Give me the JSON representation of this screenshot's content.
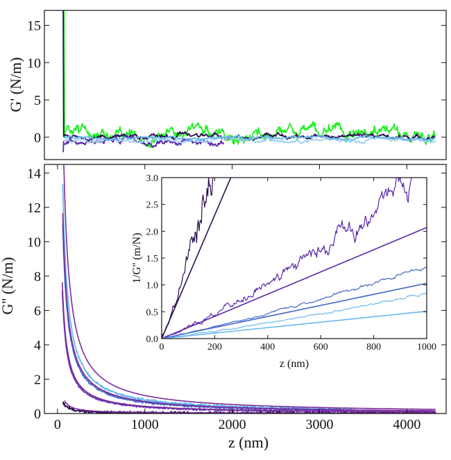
{
  "chart_data": [
    {
      "id": "top",
      "type": "line",
      "ylabel": "G' (N/m)",
      "xlabel": "",
      "xlim": [
        -150,
        4450
      ],
      "ylim": [
        -3,
        17
      ],
      "xticks": [],
      "yticks": [
        0,
        5,
        10,
        15
      ],
      "series": [
        {
          "name": "trace-green",
          "color": "#22ee22",
          "kind": "noisy",
          "base": 0.3,
          "amp": 0.9,
          "x0": 80,
          "x1": 4330,
          "spike": 17
        },
        {
          "name": "trace-dark-purple",
          "color": "#2a1050",
          "kind": "noisy",
          "base": 0.1,
          "amp": 0.35,
          "x0": 70,
          "x1": 4330,
          "spike": 17
        },
        {
          "name": "trace-violet",
          "color": "#5a28a8",
          "kind": "noisy",
          "base": -0.6,
          "amp": 0.45,
          "x0": 70,
          "x1": 1900,
          "spike": -2
        },
        {
          "name": "trace-light-blue",
          "color": "#9fd0f3",
          "kind": "noisy",
          "base": -0.4,
          "amp": 0.25,
          "x0": 70,
          "x1": 4330,
          "spike": 0
        },
        {
          "name": "trace-sky-blue",
          "color": "#6ab8ee",
          "kind": "noisy",
          "base": -0.1,
          "amp": 0.2,
          "x0": 70,
          "x1": 4330,
          "spike": 0
        }
      ]
    },
    {
      "id": "bottom",
      "type": "line",
      "ylabel": "G'' (N/m)",
      "xlabel": "z (nm)",
      "xlim": [
        -150,
        4450
      ],
      "ylim": [
        0,
        14.5
      ],
      "xticks": [
        0,
        1000,
        2000,
        3000,
        4000
      ],
      "yticks": [
        0,
        2,
        4,
        6,
        8,
        10,
        12,
        14
      ],
      "series": [
        {
          "name": "data-sky-blue",
          "color": "#6ab8ee",
          "kind": "decay",
          "k": 800,
          "x0": 60,
          "x1": 3400,
          "noise": 0.08
        },
        {
          "name": "data-blue",
          "color": "#4468c8",
          "kind": "decay",
          "k": 660,
          "x0": 60,
          "x1": 3300,
          "noise": 0.07
        },
        {
          "name": "data-violet",
          "color": "#6a34b0",
          "kind": "decay",
          "k": 390,
          "x0": 55,
          "x1": 4330,
          "noise": 0.06
        },
        {
          "name": "data-dark-purple",
          "color": "#2a1050",
          "kind": "decay",
          "k": 40,
          "x0": 60,
          "x1": 4330,
          "noise": 0.09
        },
        {
          "name": "fit-1",
          "color": "#7a2a9a",
          "kind": "fit",
          "k": 1050,
          "x0": 70,
          "x1": 4330
        },
        {
          "name": "fit-2",
          "color": "#7a2a9a",
          "kind": "fit",
          "k": 700,
          "x0": 60,
          "x1": 4330
        },
        {
          "name": "fit-3",
          "color": "#7a2a9a",
          "kind": "fit",
          "k": 420,
          "x0": 55,
          "x1": 4330
        },
        {
          "name": "fit-4",
          "color": "#7a2a9a",
          "kind": "fit",
          "k": 60,
          "x0": 80,
          "x1": 4330
        }
      ]
    },
    {
      "id": "inset",
      "type": "line",
      "ylabel": "1/G'' (m/N)",
      "xlabel": "z (nm)",
      "xlim": [
        0,
        1000
      ],
      "ylim": [
        0,
        3.0
      ],
      "xticks": [
        0,
        200,
        400,
        600,
        800,
        1000
      ],
      "yticks": [
        0.0,
        0.5,
        1.0,
        1.5,
        2.0,
        2.5,
        3.0
      ],
      "series": [
        {
          "name": "inset-dark-purple",
          "color": "#2a1050",
          "kind": "ratio",
          "slope": 0.0115,
          "curv": 4e-05,
          "x1": 300,
          "noise": 0.35
        },
        {
          "name": "inset-violet",
          "color": "#5a28a8",
          "kind": "ratio",
          "slope": 0.0021,
          "curv": 1.2e-06,
          "x1": 1000,
          "noise": 0.18
        },
        {
          "name": "inset-blue",
          "color": "#4468c8",
          "kind": "ratio",
          "slope": 0.00105,
          "curv": 3e-07,
          "x1": 1000,
          "noise": 0.06
        },
        {
          "name": "inset-sky-blue",
          "color": "#6ab8ee",
          "kind": "ratio",
          "slope": 0.00065,
          "curv": 2e-07,
          "x1": 1000,
          "noise": 0.05
        },
        {
          "name": "inset-fit-1",
          "color": "#2a1050",
          "kind": "linefit",
          "slope": 0.0115,
          "x1": 300
        },
        {
          "name": "inset-fit-2",
          "color": "#5a28a8",
          "kind": "linefit",
          "slope": 0.00207,
          "x1": 1000
        },
        {
          "name": "inset-fit-3",
          "color": "#4468c8",
          "kind": "linefit",
          "slope": 0.00103,
          "x1": 1000
        },
        {
          "name": "inset-fit-4",
          "color": "#6ab8ee",
          "kind": "linefit",
          "slope": 0.00051,
          "x1": 1000
        }
      ]
    }
  ]
}
